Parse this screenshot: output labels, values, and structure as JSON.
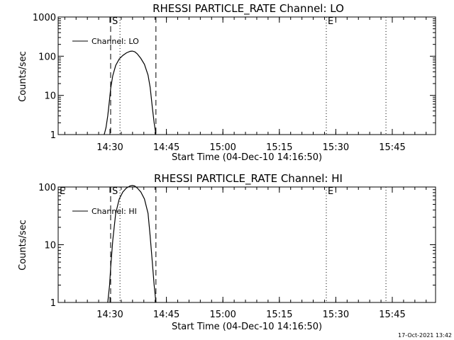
{
  "chart_data": [
    {
      "type": "line",
      "title": "RHESSI PARTICLE_RATE Channel: LO",
      "xlabel": "Start Time (04-Dec-10 14:16:50)",
      "ylabel": "Counts/sec",
      "y_scale": "log",
      "ylim": [
        1,
        1000
      ],
      "yticks": [
        "1",
        "10",
        "100",
        "1000"
      ],
      "xticks": [
        "14:30",
        "14:45",
        "15:00",
        "15:15",
        "15:30",
        "15:45"
      ],
      "xlim_minutes": [
        0,
        105
      ],
      "legend_label": "Channel: LO",
      "dashed_markers": [
        {
          "t": 14.6,
          "label": "S"
        },
        {
          "t": 27.2,
          "label": ""
        }
      ],
      "dotted_markers": [
        {
          "t": 17.2,
          "label": ""
        },
        {
          "t": 74.6,
          "label": "E"
        },
        {
          "t": 91.2,
          "label": ""
        }
      ],
      "series": [
        {
          "x": [
            12.8,
            13.3,
            13.8,
            14.3,
            14.6,
            15.2,
            16.0,
            17.0,
            18.0,
            19.0,
            20.0,
            20.6,
            21.3,
            22.0,
            23.0,
            24.0,
            25.0,
            25.6,
            26.2,
            26.7,
            27.2
          ],
          "y": [
            1.0,
            1.5,
            3.0,
            8.0,
            15,
            32,
            58,
            85,
            105,
            122,
            133,
            135,
            130,
            115,
            88,
            62,
            33,
            16,
            5,
            2,
            1.0
          ]
        }
      ]
    },
    {
      "type": "line",
      "title": "RHESSI PARTICLE_RATE Channel: HI",
      "xlabel": "Start Time (04-Dec-10 14:16:50)",
      "ylabel": "Counts/sec",
      "y_scale": "log",
      "ylim": [
        1,
        100
      ],
      "yticks": [
        "1",
        "10",
        "100"
      ],
      "xticks": [
        "14:30",
        "14:45",
        "15:00",
        "15:15",
        "15:30",
        "15:45"
      ],
      "xlim_minutes": [
        0,
        105
      ],
      "legend_label": "Channel: HI",
      "dashed_markers": [
        {
          "t": 14.6,
          "label": "S"
        },
        {
          "t": 27.2,
          "label": ""
        }
      ],
      "dotted_markers": [
        {
          "t": 0.0,
          "label": "E"
        },
        {
          "t": 17.2,
          "label": ""
        },
        {
          "t": 74.6,
          "label": "E"
        },
        {
          "t": 91.2,
          "label": ""
        }
      ],
      "series": [
        {
          "x": [
            13.8,
            14.3,
            14.6,
            15.2,
            16.0,
            17.0,
            18.0,
            19.0,
            20.0,
            20.6,
            21.3,
            22.0,
            23.0,
            24.0,
            25.0,
            25.6,
            26.2,
            26.7,
            27.2
          ],
          "y": [
            1.0,
            2.0,
            4.0,
            12,
            35,
            62,
            82,
            96,
            104,
            106,
            104,
            96,
            82,
            62,
            35,
            14,
            5,
            2,
            1.0
          ]
        }
      ]
    }
  ],
  "timestamp": "17-Oct-2021 13:42"
}
